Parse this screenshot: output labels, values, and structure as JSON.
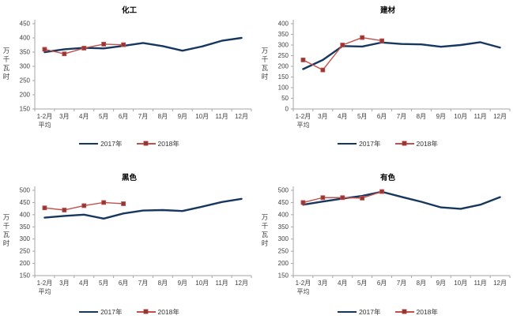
{
  "page": {
    "background": "#FFFFFF"
  },
  "colors": {
    "series_2017": "#17375E",
    "series_2018": "#C0504D",
    "marker_fill": "#953735",
    "axis": "#A6A6A6",
    "tick_text": "#3F3F3F",
    "title_text": "#000000"
  },
  "legend": {
    "label_2017": "2017年",
    "label_2018": "2018年"
  },
  "chart_data": [
    {
      "type": "line",
      "title": "化工",
      "ylabel": "万千瓦时",
      "ylim": [
        150,
        450
      ],
      "ytick_step": 50,
      "grid": false,
      "legend_position": "bottom",
      "categories": [
        "1-2月\n平均",
        "3月",
        "4月",
        "5月",
        "6月",
        "7月",
        "8月",
        "9月",
        "10月",
        "11月",
        "12月"
      ],
      "series": [
        {
          "name": "2017年",
          "color": "#17375E",
          "marker": "none",
          "values": [
            350,
            360,
            365,
            363,
            372,
            382,
            371,
            355,
            370,
            390,
            400
          ]
        },
        {
          "name": "2018年",
          "color": "#C0504D",
          "marker": "square",
          "values": [
            360,
            344,
            364,
            378,
            376
          ]
        }
      ]
    },
    {
      "type": "line",
      "title": "建材",
      "ylabel": "万千瓦时",
      "ylim": [
        0,
        400
      ],
      "ytick_step": 50,
      "grid": false,
      "legend_position": "bottom",
      "categories": [
        "1-2月\n平均",
        "3月",
        "4月",
        "5月",
        "6月",
        "7月",
        "8月",
        "9月",
        "10月",
        "11月",
        "12月"
      ],
      "series": [
        {
          "name": "2017年",
          "color": "#17375E",
          "marker": "none",
          "values": [
            187,
            230,
            295,
            293,
            312,
            305,
            303,
            292,
            300,
            313,
            288
          ]
        },
        {
          "name": "2018年",
          "color": "#C0504D",
          "marker": "square",
          "values": [
            230,
            183,
            300,
            335,
            320
          ]
        }
      ]
    },
    {
      "type": "line",
      "title": "黑色",
      "ylabel": "万千瓦时",
      "ylim": [
        150,
        500
      ],
      "ytick_step": 50,
      "grid": false,
      "legend_position": "bottom",
      "categories": [
        "1-2月\n平均",
        "3月",
        "4月",
        "5月",
        "6月",
        "7月",
        "8月",
        "9月",
        "10月",
        "11月",
        "12月"
      ],
      "series": [
        {
          "name": "2017年",
          "color": "#17375E",
          "marker": "none",
          "values": [
            388,
            395,
            400,
            384,
            405,
            417,
            419,
            415,
            433,
            452,
            465
          ]
        },
        {
          "name": "2018年",
          "color": "#C0504D",
          "marker": "square",
          "values": [
            428,
            419,
            437,
            450,
            445
          ]
        }
      ]
    },
    {
      "type": "line",
      "title": "有色",
      "ylabel": "万千瓦时",
      "ylim": [
        150,
        500
      ],
      "ytick_step": 50,
      "grid": false,
      "legend_position": "bottom",
      "categories": [
        "1-2月\n平均",
        "3月",
        "4月",
        "5月",
        "6月",
        "7月",
        "8月",
        "9月",
        "10月",
        "11月",
        "12月"
      ],
      "series": [
        {
          "name": "2017年",
          "color": "#17375E",
          "marker": "none",
          "values": [
            441,
            454,
            466,
            477,
            494,
            473,
            453,
            430,
            424,
            441,
            472
          ]
        },
        {
          "name": "2018年",
          "color": "#C0504D",
          "marker": "square",
          "values": [
            450,
            470,
            470,
            468,
            495
          ]
        }
      ]
    }
  ]
}
